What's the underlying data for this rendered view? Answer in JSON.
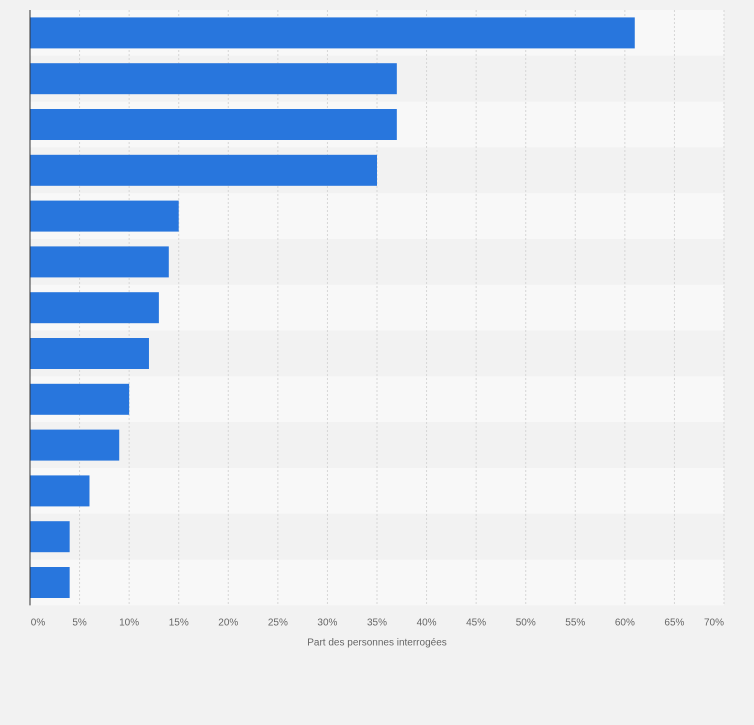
{
  "chart_data": {
    "type": "bar",
    "orientation": "horizontal",
    "categories": [
      "",
      "",
      "",
      "",
      "",
      "",
      "",
      "",
      "",
      "",
      "",
      "",
      ""
    ],
    "values": [
      61,
      37,
      37,
      35,
      15,
      14,
      13,
      12,
      10,
      9,
      6,
      4,
      4
    ],
    "title": "",
    "xlabel": "Part des personnes interrogées",
    "ylabel": "",
    "xlim": [
      0,
      70
    ],
    "x_ticks": [
      "0%",
      "5%",
      "10%",
      "15%",
      "20%",
      "25%",
      "30%",
      "35%",
      "40%",
      "45%",
      "50%",
      "55%",
      "60%",
      "65%",
      "70%"
    ],
    "grid": true,
    "legend": "none",
    "colors": {
      "bar": "#2876dd",
      "band_light": "#f8f8f8",
      "band_dark": "#f2f2f2",
      "gridline": "#d6d6d6",
      "axis": "#333333",
      "tick_text": "#666666",
      "background": "#f2f2f2"
    }
  }
}
